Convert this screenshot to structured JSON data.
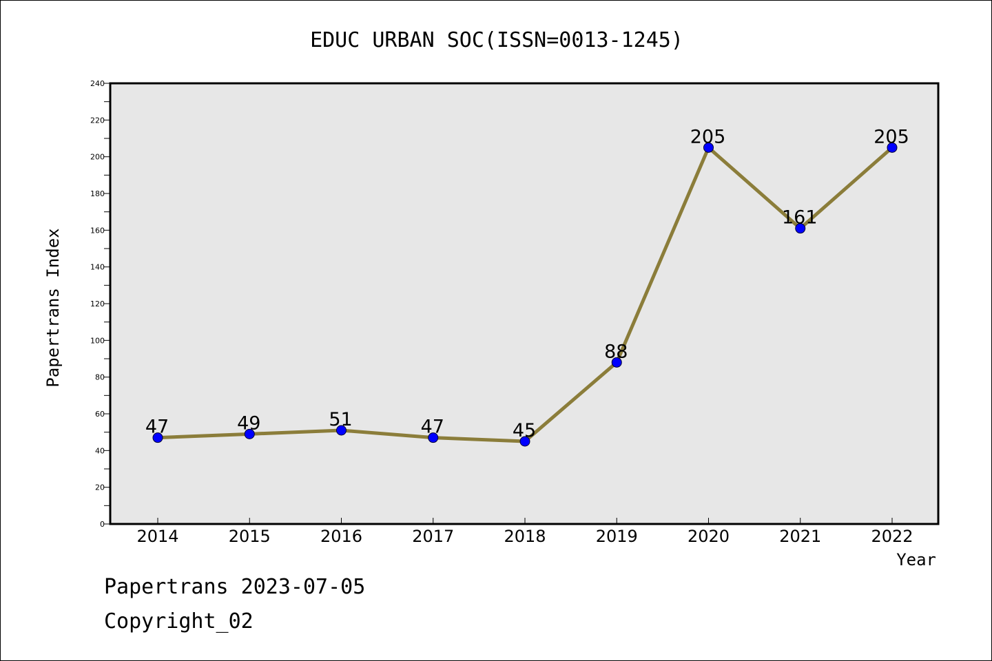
{
  "chart_data": {
    "type": "line",
    "title": "EDUC URBAN SOC(ISSN=0013-1245)",
    "xlabel": "Year",
    "ylabel": "Papertrans Index",
    "categories": [
      "2014",
      "2015",
      "2016",
      "2017",
      "2018",
      "2019",
      "2020",
      "2021",
      "2022"
    ],
    "values": [
      47,
      49,
      51,
      47,
      45,
      88,
      205,
      161,
      205
    ],
    "ylim": [
      0,
      240
    ],
    "yticks": [
      0,
      20,
      40,
      60,
      80,
      100,
      120,
      140,
      160,
      180,
      200,
      220,
      240
    ],
    "grid": false,
    "legend": "none",
    "colors": {
      "line": "#8b7d3a",
      "marker": "#0000ff",
      "plot_background": "#e7e7e7"
    }
  },
  "footer": {
    "line1": "Papertrans 2023-07-05",
    "line2": "Copyright_02"
  }
}
